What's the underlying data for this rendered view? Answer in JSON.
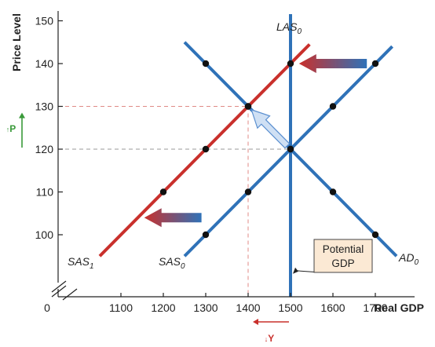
{
  "chart_data": {
    "type": "line",
    "xlabel": "Real GDP",
    "ylabel": "Price Level",
    "x_origin_label": "0",
    "x_ticks": [
      1100,
      1200,
      1300,
      1400,
      1500,
      1600,
      1700
    ],
    "y_ticks": [
      100,
      110,
      120,
      130,
      140,
      150
    ],
    "highlight": {
      "x": 1400,
      "y": 130,
      "color": "#c9302c"
    },
    "axis_break": true,
    "series": [
      {
        "name": "SAS",
        "subscript": "0",
        "color": "#2f72b8",
        "points": [
          [
            1300,
            100
          ],
          [
            1400,
            110
          ],
          [
            1500,
            120
          ],
          [
            1600,
            130
          ],
          [
            1700,
            140
          ]
        ],
        "line_x": [
          1250,
          1740
        ]
      },
      {
        "name": "SAS",
        "subscript": "1",
        "color": "#c9302c",
        "points": [
          [
            1200,
            110
          ],
          [
            1300,
            120
          ],
          [
            1400,
            130
          ],
          [
            1500,
            140
          ]
        ],
        "line_x": [
          1050,
          1545
        ]
      },
      {
        "name": "AD",
        "subscript": "0",
        "color": "#2f72b8",
        "points": [
          [
            1300,
            140
          ],
          [
            1400,
            130
          ],
          [
            1500,
            120
          ],
          [
            1600,
            110
          ],
          [
            1700,
            100
          ]
        ],
        "line_x": [
          1250,
          1750
        ]
      },
      {
        "name": "LAS",
        "subscript": "0",
        "color": "#2f72b8",
        "x": 1500
      }
    ],
    "callout": {
      "lines": [
        "Potential",
        "GDP"
      ],
      "points_to": [
        1500,
        96
      ]
    },
    "shift_arrows": [
      {
        "from": [
          1680,
          140
        ],
        "to": [
          1520,
          140
        ],
        "label": ""
      },
      {
        "from": [
          1290,
          104
        ],
        "to": [
          1155,
          104
        ],
        "label": ""
      }
    ],
    "movement_arrow": {
      "from": [
        1500,
        120
      ],
      "to": [
        1400,
        130
      ]
    },
    "y_indicator": {
      "label": "P",
      "color": "#3a9a3a",
      "direction": "up",
      "from": 120,
      "to": 130
    },
    "x_indicator": {
      "label": "Y",
      "color": "#c9302c",
      "direction": "down",
      "from": 1500,
      "to": 1400
    }
  }
}
